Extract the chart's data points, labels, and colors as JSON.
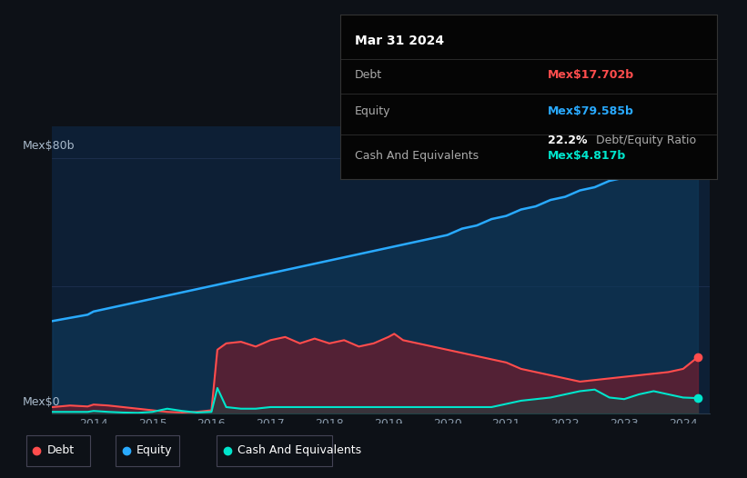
{
  "bg_color": "#0d1117",
  "chart_bg": "#0d1f35",
  "debt_color": "#ff4d4d",
  "equity_color": "#29aaff",
  "cash_color": "#00e5cc",
  "debt_fill_color": "#7a1a2a",
  "equity_fill_color": "#0d3a5c",
  "cash_fill_color": "#1a4a44",
  "title": "Mar 31 2024",
  "ylabel_top": "Mex$80b",
  "ylabel_bottom": "Mex$0",
  "debt_label": "Debt",
  "equity_label": "Equity",
  "cash_label": "Cash And Equivalents",
  "debt_value": "Mex$17.702b",
  "equity_value": "Mex$79.585b",
  "ratio_text": "22.2%",
  "ratio_label": " Debt/Equity Ratio",
  "cash_value": "Mex$4.817b",
  "ylim": [
    0,
    90
  ],
  "xlim": [
    2013.3,
    2024.45
  ],
  "equity_x": [
    2013.3,
    2013.6,
    2013.9,
    2014.0,
    2014.25,
    2014.5,
    2014.75,
    2015.0,
    2015.25,
    2015.5,
    2015.75,
    2016.0,
    2016.25,
    2016.5,
    2016.75,
    2017.0,
    2017.25,
    2017.5,
    2017.75,
    2018.0,
    2018.25,
    2018.5,
    2018.75,
    2019.0,
    2019.25,
    2019.5,
    2019.75,
    2020.0,
    2020.25,
    2020.5,
    2020.75,
    2021.0,
    2021.25,
    2021.5,
    2021.75,
    2022.0,
    2022.25,
    2022.5,
    2022.75,
    2023.0,
    2023.25,
    2023.5,
    2023.75,
    2024.0,
    2024.25
  ],
  "equity_y": [
    29,
    30,
    31,
    32,
    33,
    34,
    35,
    36,
    37,
    38,
    39,
    40,
    41,
    42,
    43,
    44,
    45,
    46,
    47,
    48,
    49,
    50,
    51,
    52,
    53,
    54,
    55,
    56,
    58,
    59,
    61,
    62,
    64,
    65,
    67,
    68,
    70,
    71,
    73,
    74,
    76,
    77,
    78,
    79,
    79.585
  ],
  "debt_x": [
    2013.3,
    2013.6,
    2013.9,
    2014.0,
    2014.25,
    2014.5,
    2014.75,
    2015.0,
    2015.25,
    2015.5,
    2015.75,
    2016.0,
    2016.1,
    2016.25,
    2016.5,
    2016.75,
    2017.0,
    2017.25,
    2017.5,
    2017.75,
    2018.0,
    2018.25,
    2018.5,
    2018.75,
    2019.0,
    2019.1,
    2019.25,
    2019.5,
    2019.75,
    2020.0,
    2020.25,
    2020.5,
    2020.75,
    2021.0,
    2021.25,
    2021.5,
    2021.75,
    2022.0,
    2022.25,
    2022.5,
    2022.75,
    2023.0,
    2023.25,
    2023.5,
    2023.75,
    2024.0,
    2024.25
  ],
  "debt_y": [
    2.0,
    2.5,
    2.2,
    2.8,
    2.5,
    2.0,
    1.5,
    1.0,
    0.5,
    0.3,
    0.5,
    1.0,
    20.0,
    22.0,
    22.5,
    21.0,
    23.0,
    24.0,
    22.0,
    23.5,
    22.0,
    23.0,
    21.0,
    22.0,
    24.0,
    25.0,
    23.0,
    22.0,
    21.0,
    20.0,
    19.0,
    18.0,
    17.0,
    16.0,
    14.0,
    13.0,
    12.0,
    11.0,
    10.0,
    10.5,
    11.0,
    11.5,
    12.0,
    12.5,
    13.0,
    14.0,
    17.702
  ],
  "cash_x": [
    2013.3,
    2013.6,
    2013.9,
    2014.0,
    2014.25,
    2014.5,
    2014.75,
    2015.0,
    2015.25,
    2015.5,
    2015.75,
    2016.0,
    2016.1,
    2016.25,
    2016.5,
    2016.75,
    2017.0,
    2017.25,
    2017.5,
    2017.75,
    2018.0,
    2018.25,
    2018.5,
    2018.75,
    2019.0,
    2019.25,
    2019.5,
    2019.75,
    2020.0,
    2020.25,
    2020.5,
    2020.75,
    2021.0,
    2021.25,
    2021.5,
    2021.75,
    2022.0,
    2022.25,
    2022.5,
    2022.75,
    2023.0,
    2023.25,
    2023.5,
    2023.75,
    2024.0,
    2024.25
  ],
  "cash_y": [
    0.5,
    0.5,
    0.5,
    0.8,
    0.5,
    0.3,
    0.2,
    0.5,
    1.5,
    0.8,
    0.3,
    0.5,
    8.0,
    2.0,
    1.5,
    1.5,
    2.0,
    2.0,
    2.0,
    2.0,
    2.0,
    2.0,
    2.0,
    2.0,
    2.0,
    2.0,
    2.0,
    2.0,
    2.0,
    2.0,
    2.0,
    2.0,
    3.0,
    4.0,
    4.5,
    5.0,
    6.0,
    7.0,
    7.5,
    5.0,
    4.5,
    6.0,
    7.0,
    6.0,
    5.0,
    4.817
  ]
}
